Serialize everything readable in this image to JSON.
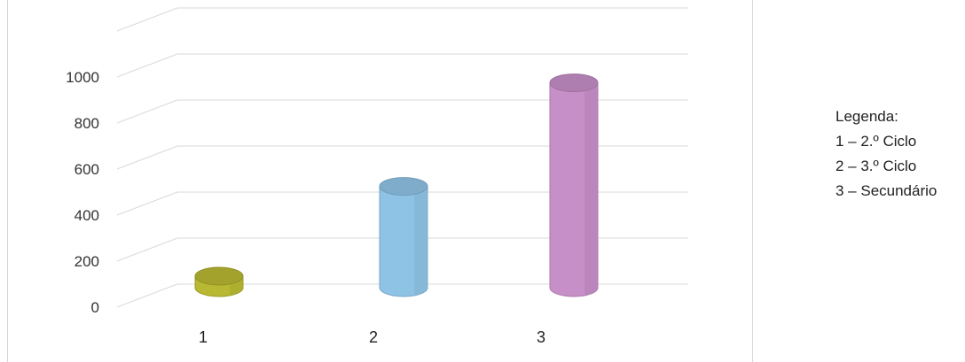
{
  "chart_data": {
    "type": "bar",
    "style": "3d-cylinder",
    "categories": [
      "1",
      "2",
      "3"
    ],
    "values": [
      50,
      440,
      890
    ],
    "colors": [
      "#b8b832",
      "#8fc3e6",
      "#c78fc8"
    ],
    "ylim": [
      0,
      1000
    ],
    "yticks": [
      "0",
      "200",
      "400",
      "600",
      "800",
      "1000"
    ],
    "grid": true
  },
  "legend": {
    "title": "Legenda:",
    "items": [
      "1 – 2.º Ciclo",
      "2 – 3.º Ciclo",
      "3 – Secundário"
    ]
  }
}
